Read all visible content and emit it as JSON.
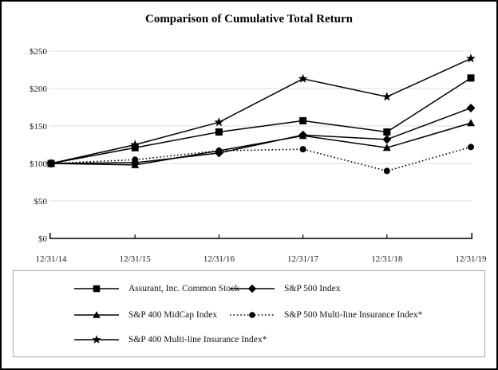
{
  "chart_data": {
    "type": "line",
    "title": "Comparison of Cumulative Total Return",
    "xlabel": "",
    "ylabel": "",
    "x": [
      "12/31/14",
      "12/31/15",
      "12/31/16",
      "12/31/17",
      "12/31/18",
      "12/31/19"
    ],
    "series": [
      {
        "name": "Assurant, Inc. Common Stock",
        "marker": "square",
        "line": "solid",
        "values": [
          100,
          121,
          142,
          157,
          142,
          214
        ]
      },
      {
        "name": "S&P 500 Index",
        "marker": "diamond",
        "line": "solid",
        "values": [
          100,
          101,
          114,
          138,
          132,
          174
        ]
      },
      {
        "name": "S&P 400 MidCap Index",
        "marker": "triangle",
        "line": "solid",
        "values": [
          100,
          98,
          117,
          137,
          121,
          154
        ]
      },
      {
        "name": "S&P 500 Multi-line Insurance Index*",
        "marker": "circle",
        "line": "dotted",
        "values": [
          100,
          105,
          117,
          119,
          90,
          122
        ]
      },
      {
        "name": "S&P 400 Multi-line Insurance Index*",
        "marker": "star",
        "line": "solid",
        "values": [
          100,
          125,
          155,
          213,
          189,
          240
        ]
      }
    ],
    "ylim": [
      0,
      250
    ],
    "ytick_interval": 50,
    "ytick_labels": [
      "$0",
      "$50",
      "$100",
      "$150",
      "$200",
      "$250"
    ],
    "grid": "horizontal",
    "legend_position": "bottom-box",
    "colors": {
      "series": "#000000",
      "gridline": "#dcdcdc",
      "axis": "#000000",
      "legend_border": "#a6a6a6",
      "frame_border": "#000000",
      "background": "#ffffff"
    }
  }
}
